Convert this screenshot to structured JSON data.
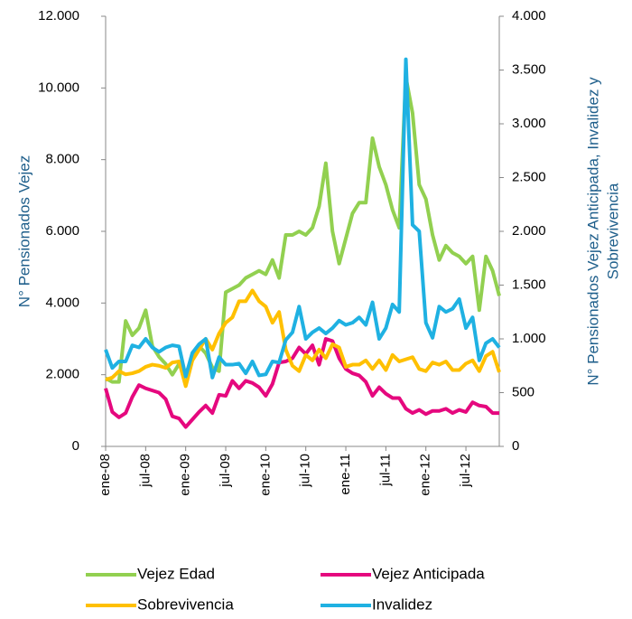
{
  "chart_data": {
    "type": "line",
    "ylabel": "N° Pensionados Vejez",
    "y2label": [
      "N° Pensionados Vejez Anticipada, Invalidez y",
      "Sobrevivencia"
    ],
    "categories": [
      "ene-08",
      null,
      null,
      null,
      null,
      null,
      "jul-08",
      null,
      null,
      null,
      null,
      null,
      "ene-09",
      null,
      null,
      null,
      null,
      null,
      "jul-09",
      null,
      null,
      null,
      null,
      null,
      "ene-10",
      null,
      null,
      null,
      null,
      null,
      "jul-10",
      null,
      null,
      null,
      null,
      null,
      "ene-11",
      null,
      null,
      null,
      null,
      null,
      "jul-11",
      null,
      null,
      null,
      null,
      null,
      "ene-12",
      null,
      null,
      null,
      null,
      null,
      "jul-12",
      null,
      null,
      null,
      null,
      null
    ],
    "ylim": [
      0,
      12000
    ],
    "yticks": [
      0,
      {
        "value": 2000,
        "label": "2.000"
      },
      {
        "value": 4000,
        "label": "4.000"
      },
      {
        "value": 6000,
        "label": "6.000"
      },
      {
        "value": 8000,
        "label": "8.000"
      },
      {
        "value": 10000,
        "label": "10.000"
      },
      {
        "value": 12000,
        "label": "12.000"
      }
    ],
    "y2lim": [
      0,
      4000
    ],
    "y2ticks": [
      0,
      500,
      {
        "value": 1000,
        "label": "1.000"
      },
      {
        "value": 1500,
        "label": "1.500"
      },
      {
        "value": 2000,
        "label": "2.000"
      },
      {
        "value": 2500,
        "label": "2.500"
      },
      {
        "value": 3000,
        "label": "3.000"
      },
      {
        "value": 3500,
        "label": "3.500"
      },
      {
        "value": 4000,
        "label": "4.000"
      }
    ],
    "grid": false,
    "series": [
      {
        "name": "Vejez Edad",
        "color": "#92d050",
        "values": [
          1900,
          1800,
          1800,
          3500,
          3100,
          3300,
          3800,
          2800,
          2500,
          2300,
          2000,
          2300,
          2000,
          2500,
          2800,
          2600,
          2200,
          2100,
          4300,
          4400,
          4500,
          4700,
          4800,
          4900,
          4800,
          5200,
          4700,
          5900,
          5900,
          6000,
          5900,
          6100,
          6700,
          7900,
          6000,
          5100,
          5800,
          6500,
          6800,
          6800,
          8600,
          7800,
          7300,
          6600,
          6100,
          10300,
          9300,
          7300,
          6900,
          5900,
          5200,
          5600,
          5400,
          5300,
          5100,
          5300,
          3800,
          5300,
          4900,
          4200
        ]
      },
      {
        "name": "Vejez Anticipada",
        "color": "#e5087e",
        "axis": "y2",
        "values": [
          540,
          320,
          270,
          310,
          460,
          570,
          540,
          520,
          500,
          440,
          280,
          260,
          180,
          250,
          320,
          380,
          310,
          480,
          470,
          610,
          540,
          610,
          590,
          550,
          470,
          580,
          780,
          790,
          820,
          920,
          860,
          940,
          760,
          1000,
          980,
          820,
          720,
          680,
          660,
          600,
          470,
          550,
          490,
          450,
          450,
          350,
          310,
          340,
          300,
          330,
          330,
          350,
          310,
          340,
          320,
          410,
          380,
          370,
          310,
          310
        ]
      },
      {
        "name": "Sobrevivencia",
        "color": "#ffc000",
        "axis": "y2",
        "values": [
          620,
          640,
          700,
          670,
          680,
          700,
          740,
          760,
          750,
          730,
          780,
          790,
          560,
          800,
          900,
          1000,
          900,
          1050,
          1150,
          1200,
          1350,
          1350,
          1450,
          1350,
          1300,
          1150,
          1250,
          900,
          750,
          700,
          850,
          800,
          900,
          820,
          950,
          920,
          740,
          760,
          760,
          800,
          720,
          800,
          710,
          850,
          790,
          810,
          830,
          720,
          700,
          780,
          760,
          790,
          710,
          710,
          770,
          800,
          700,
          840,
          880,
          690
        ]
      },
      {
        "name": "Invalidez",
        "color": "#1fb1e2",
        "axis": "y2",
        "values": [
          900,
          730,
          790,
          790,
          940,
          920,
          1000,
          920,
          880,
          920,
          940,
          930,
          650,
          870,
          950,
          1000,
          640,
          830,
          760,
          760,
          770,
          680,
          790,
          660,
          670,
          790,
          780,
          990,
          1060,
          1300,
          1000,
          1060,
          1100,
          1050,
          1100,
          1170,
          1130,
          1150,
          1200,
          1130,
          1340,
          1000,
          1100,
          1320,
          1250,
          3600,
          2060,
          2000,
          1150,
          1010,
          1300,
          1250,
          1280,
          1370,
          1100,
          1200,
          800,
          960,
          1000,
          920
        ]
      }
    ]
  }
}
